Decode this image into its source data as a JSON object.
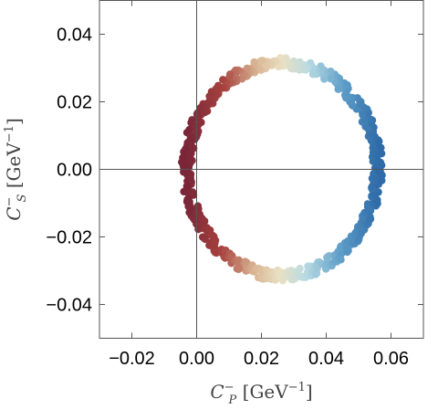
{
  "chart_data": {
    "type": "scatter",
    "title": "",
    "xlabel": {
      "main": "C",
      "sub": "P",
      "sup": "−",
      "unit_pre": "[GeV",
      "unit_sup": "−1",
      "unit_post": "]"
    },
    "ylabel": {
      "main": "C",
      "sub": "S",
      "sup": "−",
      "unit_pre": "[GeV",
      "unit_sup": "−1",
      "unit_post": "]"
    },
    "xlim": [
      -0.03,
      0.07
    ],
    "ylim": [
      -0.05,
      0.05
    ],
    "xticks": [
      -0.02,
      0.0,
      0.02,
      0.04,
      0.06
    ],
    "xtick_labels": [
      "−0.02",
      "0.00",
      "0.02",
      "0.04",
      "0.06"
    ],
    "yticks": [
      -0.04,
      -0.02,
      0.0,
      0.02,
      0.04
    ],
    "ytick_labels": [
      "−0.04",
      "−0.02",
      "0.00",
      "0.02",
      "0.04"
    ],
    "grid": false,
    "zero_lines": true,
    "ring": {
      "center": [
        0.0264,
        0.0
      ],
      "radius_x": 0.0295,
      "radius_y": 0.0315,
      "thickness": 0.0032
    },
    "colormap": {
      "variable": "x",
      "stops": [
        {
          "x": -0.003,
          "color": "#7a2638"
        },
        {
          "x": 0.008,
          "color": "#a8433f"
        },
        {
          "x": 0.018,
          "color": "#d9b593"
        },
        {
          "x": 0.026,
          "color": "#e9e0c3"
        },
        {
          "x": 0.034,
          "color": "#b9dbe2"
        },
        {
          "x": 0.045,
          "color": "#5d9dc8"
        },
        {
          "x": 0.056,
          "color": "#2e6ba8"
        }
      ]
    }
  }
}
